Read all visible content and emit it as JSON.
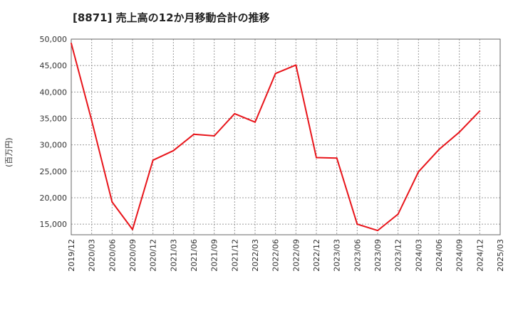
{
  "chart_data": {
    "type": "line",
    "title": "[8871]  売上高の12か月移動合計の推移",
    "ylabel": "(百万円)",
    "xlabel": "",
    "ylim": [
      13000,
      50000
    ],
    "yticks": [
      15000,
      20000,
      25000,
      30000,
      35000,
      40000,
      45000,
      50000
    ],
    "ytick_labels": [
      "15,000",
      "20,000",
      "25,000",
      "30,000",
      "35,000",
      "40,000",
      "45,000",
      "50,000"
    ],
    "xtick_labels": [
      "2019/12",
      "2020/03",
      "2020/06",
      "2020/09",
      "2020/12",
      "2021/03",
      "2021/06",
      "2021/09",
      "2021/12",
      "2022/03",
      "2022/06",
      "2022/09",
      "2022/12",
      "2023/03",
      "2023/06",
      "2023/09",
      "2023/12",
      "2024/03",
      "2024/06",
      "2024/09",
      "2024/12",
      "2025/03"
    ],
    "grid": true,
    "series": [
      {
        "name": "売上高",
        "color": "#e8151b",
        "x": [
          "2019/12",
          "2020/03",
          "2020/06",
          "2020/09",
          "2020/12",
          "2021/03",
          "2021/06",
          "2021/09",
          "2021/12",
          "2022/03",
          "2022/06",
          "2022/09",
          "2022/12",
          "2023/03",
          "2023/06",
          "2023/09",
          "2023/12",
          "2024/03",
          "2024/06",
          "2024/09",
          "2024/12"
        ],
        "values": [
          49200,
          34600,
          19200,
          14000,
          27100,
          28900,
          32000,
          31700,
          35900,
          34300,
          43500,
          45100,
          27600,
          27500,
          15000,
          13800,
          16900,
          24900,
          29100,
          32400,
          36400
        ]
      }
    ]
  }
}
